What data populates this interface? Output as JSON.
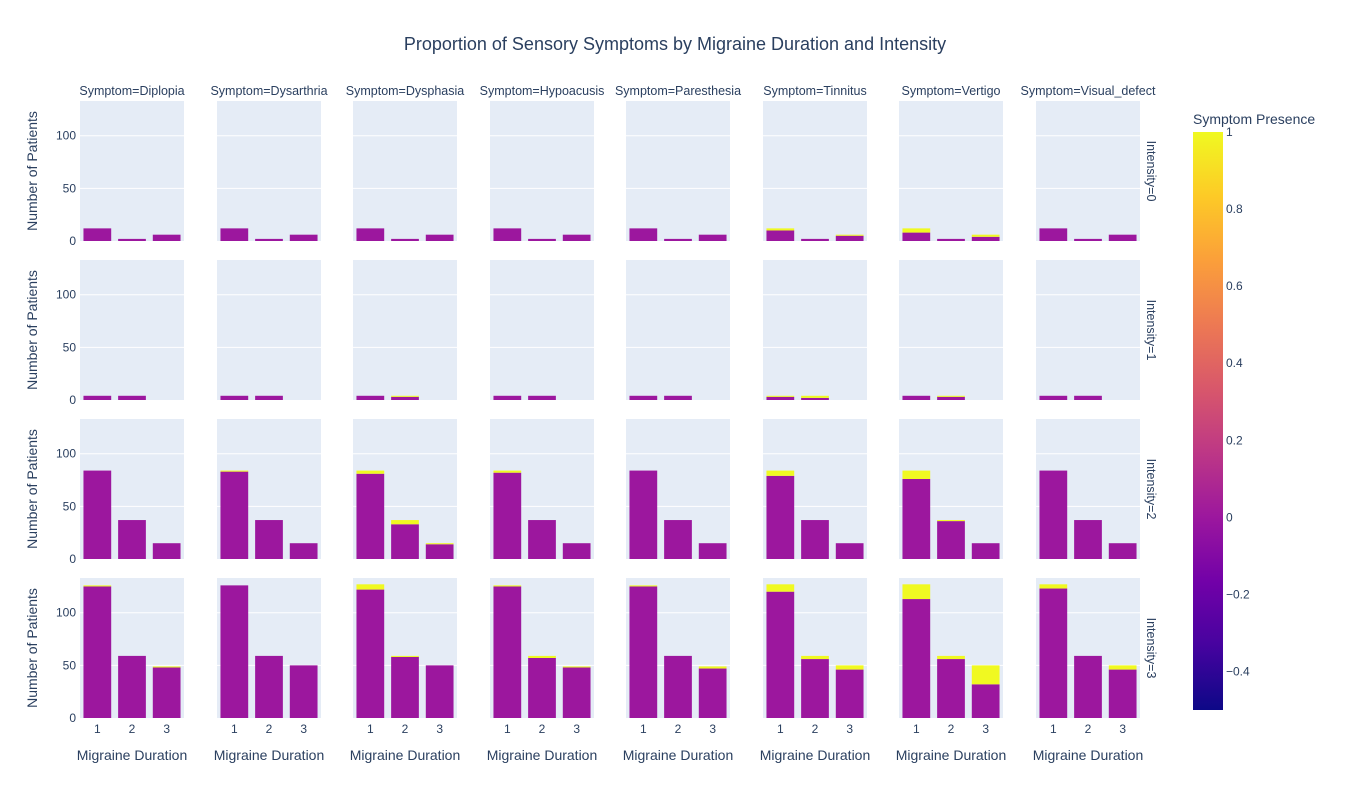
{
  "chart_data": {
    "type": "bar",
    "title": "Proportion of Sensory Symptoms by Migraine Duration and Intensity",
    "xlabel": "Migraine Duration",
    "ylabel": "Number of Patients",
    "categories": [
      "1",
      "2",
      "3"
    ],
    "ylim": [
      0,
      133
    ],
    "yticks": [
      0,
      50,
      100
    ],
    "grid": true,
    "barmode": "stack",
    "colorbar": {
      "title": "Symptom Presence",
      "range": [
        -0.5,
        1
      ],
      "ticks": [
        "1",
        "0.8",
        "0.6",
        "0.4",
        "0.2",
        "0",
        "−0.2",
        "−0.4"
      ],
      "tick_values": [
        1,
        0.8,
        0.6,
        0.4,
        0.2,
        0,
        -0.2,
        -0.4
      ],
      "stops": [
        "#0d0887",
        "#46039f",
        "#7201a8",
        "#9c179e",
        "#bd3786",
        "#d8576b",
        "#ed7953",
        "#fb9f3a",
        "#fdca26",
        "#f0f921"
      ],
      "absent_color": "#9c179e",
      "present_color": "#f0f921"
    },
    "symptoms": [
      "Diplopia",
      "Dysarthria",
      "Dysphasia",
      "Hypoacusis",
      "Paresthesia",
      "Tinnitus",
      "Vertigo",
      "Visual_defect"
    ],
    "column_labels": [
      "Symptom=Diplopia",
      "Symptom=Dysarthria",
      "Symptom=Dysphasia",
      "Symptom=Hypoacusis",
      "Symptom=Paresthesia",
      "Symptom=Tinnitus",
      "Symptom=Vertigo",
      "Symptom=Visual_defect"
    ],
    "intensities": [
      "0",
      "1",
      "2",
      "3"
    ],
    "row_labels": [
      "Intensity=0",
      "Intensity=1",
      "Intensity=2",
      "Intensity=3"
    ],
    "series": [
      {
        "intensity": "0",
        "absent": [
          [
            12,
            2,
            6
          ],
          [
            12,
            2,
            6
          ],
          [
            12,
            2,
            6
          ],
          [
            12,
            2,
            6
          ],
          [
            12,
            2,
            6
          ],
          [
            10,
            2,
            5
          ],
          [
            8,
            2,
            4
          ],
          [
            12,
            2,
            6
          ]
        ],
        "present": [
          [
            0,
            0,
            0
          ],
          [
            0,
            0,
            0
          ],
          [
            0,
            0,
            0
          ],
          [
            0,
            0,
            0
          ],
          [
            0,
            0,
            0
          ],
          [
            2,
            0,
            1
          ],
          [
            4,
            0,
            2
          ],
          [
            0,
            0,
            0
          ]
        ]
      },
      {
        "intensity": "1",
        "absent": [
          [
            4,
            4,
            0
          ],
          [
            4,
            4,
            0
          ],
          [
            4,
            3,
            0
          ],
          [
            4,
            4,
            0
          ],
          [
            4,
            4,
            0
          ],
          [
            3,
            2,
            0
          ],
          [
            4,
            3,
            0
          ],
          [
            4,
            4,
            0
          ]
        ],
        "present": [
          [
            0,
            0,
            0
          ],
          [
            0,
            0,
            0
          ],
          [
            0,
            1,
            0
          ],
          [
            0,
            0,
            0
          ],
          [
            0,
            0,
            0
          ],
          [
            1,
            2,
            0
          ],
          [
            0,
            1,
            0
          ],
          [
            0,
            0,
            0
          ]
        ]
      },
      {
        "intensity": "2",
        "absent": [
          [
            84,
            37,
            15
          ],
          [
            83,
            37,
            15
          ],
          [
            81,
            33,
            14
          ],
          [
            82,
            37,
            15
          ],
          [
            84,
            37,
            15
          ],
          [
            79,
            37,
            15
          ],
          [
            76,
            36,
            15
          ],
          [
            84,
            37,
            15
          ]
        ],
        "present": [
          [
            0,
            0,
            0
          ],
          [
            1,
            0,
            0
          ],
          [
            3,
            4,
            1
          ],
          [
            2,
            0,
            0
          ],
          [
            0,
            0,
            0
          ],
          [
            5,
            0,
            0
          ],
          [
            8,
            1,
            0
          ],
          [
            0,
            0,
            0
          ]
        ]
      },
      {
        "intensity": "3",
        "absent": [
          [
            125,
            59,
            48
          ],
          [
            126,
            59,
            50
          ],
          [
            122,
            58,
            50
          ],
          [
            125,
            57,
            48
          ],
          [
            125,
            59,
            47
          ],
          [
            120,
            56,
            46
          ],
          [
            113,
            56,
            32
          ],
          [
            123,
            59,
            46
          ]
        ],
        "present": [
          [
            1,
            0,
            1
          ],
          [
            0,
            0,
            0
          ],
          [
            5,
            1,
            0
          ],
          [
            1,
            2,
            1
          ],
          [
            1,
            0,
            2
          ],
          [
            7,
            3,
            4
          ],
          [
            14,
            3,
            18
          ],
          [
            4,
            0,
            4
          ]
        ]
      }
    ]
  }
}
